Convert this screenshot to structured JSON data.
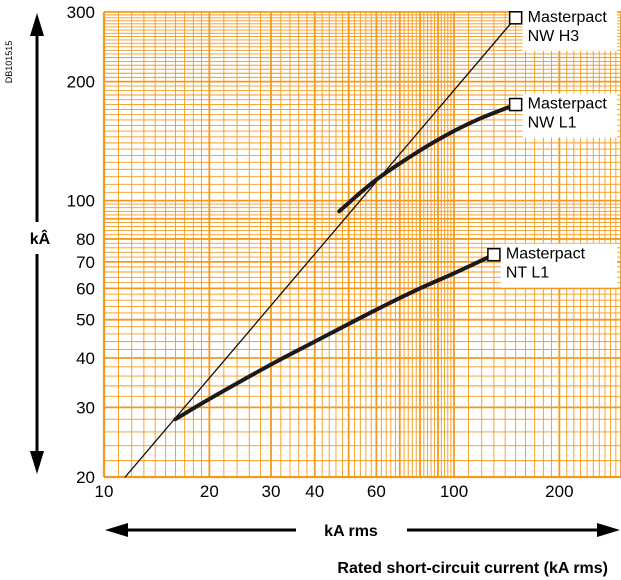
{
  "doc_id": "DB101515",
  "colors": {
    "grid": "#f39a1e",
    "curve": "#1a1a1a",
    "diagonal": "#111111",
    "background": "#ffffff"
  },
  "chart_data": {
    "type": "line",
    "x_scale": "log",
    "y_scale": "log",
    "xlim": [
      10,
      300
    ],
    "ylim": [
      20,
      300
    ],
    "grid": true,
    "xlabel": "kA rms",
    "ylabel": "kÂ",
    "caption": "Rated short-circuit current (kA rms)",
    "x_ticks": [
      {
        "value": 10,
        "label": "10"
      },
      {
        "value": 20,
        "label": "20"
      },
      {
        "value": 30,
        "label": "30"
      },
      {
        "value": 40,
        "label": "40"
      },
      {
        "value": 60,
        "label": "60"
      },
      {
        "value": 100,
        "label": "100"
      },
      {
        "value": 200,
        "label": "200"
      }
    ],
    "y_ticks": [
      {
        "value": 20,
        "label": "20"
      },
      {
        "value": 30,
        "label": "30"
      },
      {
        "value": 40,
        "label": "40"
      },
      {
        "value": 50,
        "label": "50"
      },
      {
        "value": 60,
        "label": "60"
      },
      {
        "value": 70,
        "label": "70"
      },
      {
        "value": 80,
        "label": "80"
      },
      {
        "value": 100,
        "label": "100"
      },
      {
        "value": 200,
        "label": "200"
      },
      {
        "value": 300,
        "label": "300"
      }
    ],
    "series": [
      {
        "name": "Masterpact NW H3",
        "label_lines": [
          "Masterpact",
          "NW H3"
        ],
        "style": "thin",
        "x": [
          11.5,
          150
        ],
        "y": [
          20,
          290
        ]
      },
      {
        "name": "Masterpact NW L1",
        "label_lines": [
          "Masterpact",
          "NW L1"
        ],
        "style": "thick",
        "x": [
          47,
          60,
          80,
          100,
          120,
          150
        ],
        "y": [
          94,
          113,
          134,
          150,
          162,
          175
        ]
      },
      {
        "name": "Masterpact NT L1",
        "label_lines": [
          "Masterpact",
          "NT L1"
        ],
        "style": "thick",
        "x": [
          16,
          20,
          30,
          40,
          60,
          80,
          100,
          130
        ],
        "y": [
          28,
          31.5,
          38.5,
          44,
          53,
          60,
          65.5,
          73
        ]
      }
    ]
  }
}
